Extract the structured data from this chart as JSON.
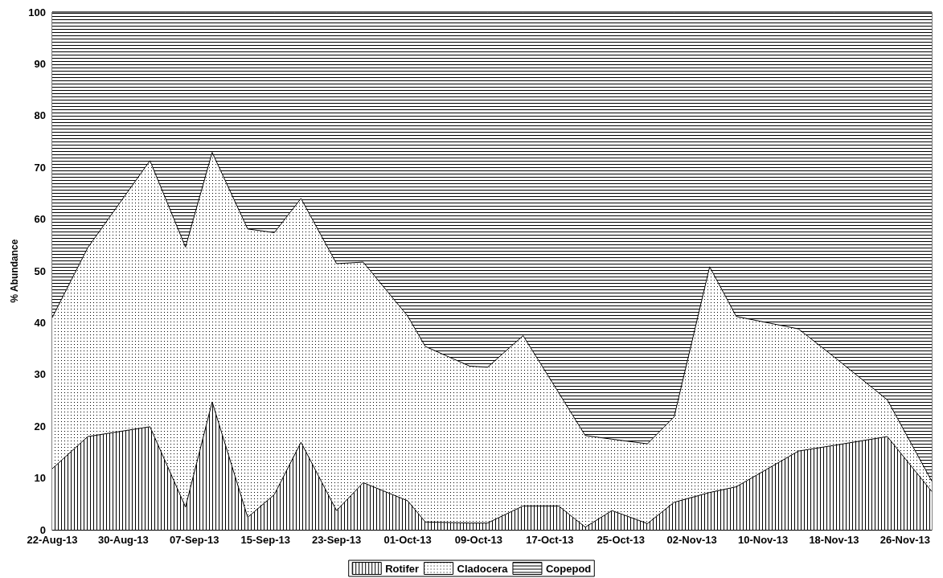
{
  "chart_data": {
    "type": "area",
    "stacked": true,
    "ylabel": "% Abundance",
    "legend": "bottom",
    "x": [
      "--08-22",
      "--08-26",
      "--09-02",
      "--09-06",
      "--09-09",
      "--09-13",
      "--09-16",
      "--09-19",
      "--09-23",
      "--09-26",
      "--10-01",
      "--10-03",
      "--10-08",
      "--10-10",
      "--10-14",
      "--10-18",
      "--10-21",
      "--10-24",
      "--10-28",
      "--10-31",
      "--11-04",
      "--11-07",
      "--11-14",
      "--11-18",
      "--11-24",
      "--11-29"
    ],
    "series": [
      {
        "name": "Rotifer",
        "color": "#000000",
        "values": [
          11.8,
          18.0,
          19.9,
          4.4,
          24.7,
          2.4,
          6.8,
          16.9,
          3.7,
          9.1,
          5.6,
          1.5,
          1.3,
          1.3,
          4.6,
          4.6,
          0.5,
          3.7,
          1.2,
          5.3,
          7.2,
          8.3,
          15.2,
          16.3,
          18.0,
          7.4
        ]
      },
      {
        "name": "Cladocera",
        "color": "#000000",
        "values": [
          29.2,
          36.5,
          51.4,
          50.2,
          48.2,
          55.7,
          50.6,
          47.1,
          47.7,
          42.6,
          35.7,
          33.9,
          30.3,
          30.1,
          32.9,
          21.9,
          17.7,
          13.8,
          15.4,
          16.5,
          43.6,
          32.9,
          23.6,
          17.1,
          7.1,
          2.0
        ]
      },
      {
        "name": "Copepod",
        "color": "#000000",
        "values": [
          59.0,
          45.5,
          28.7,
          45.4,
          27.1,
          41.9,
          42.6,
          36.0,
          48.6,
          48.3,
          58.7,
          64.6,
          68.4,
          68.6,
          62.5,
          73.5,
          81.8,
          82.5,
          83.4,
          78.2,
          49.2,
          58.8,
          61.2,
          66.6,
          74.9,
          90.6
        ]
      }
    ],
    "xlim": [
      "--08-22",
      "--11-29"
    ],
    "xticks": [
      {
        "value": "--08-22",
        "label": "22-Aug-13"
      },
      {
        "value": "--08-30",
        "label": "30-Aug-13"
      },
      {
        "value": "--09-07",
        "label": "07-Sep-13"
      },
      {
        "value": "--09-15",
        "label": "15-Sep-13"
      },
      {
        "value": "--09-23",
        "label": "23-Sep-13"
      },
      {
        "value": "--10-01",
        "label": "01-Oct-13"
      },
      {
        "value": "--10-09",
        "label": "09-Oct-13"
      },
      {
        "value": "--10-17",
        "label": "17-Oct-13"
      },
      {
        "value": "--10-25",
        "label": "25-Oct-13"
      },
      {
        "value": "--11-02",
        "label": "02-Nov-13"
      },
      {
        "value": "--11-10",
        "label": "10-Nov-13"
      },
      {
        "value": "--11-18",
        "label": "18-Nov-13"
      },
      {
        "value": "--11-26",
        "label": "26-Nov-13"
      }
    ],
    "ylim": [
      0,
      100
    ],
    "yticks": [
      0,
      10,
      20,
      30,
      40,
      50,
      60,
      70,
      80,
      90,
      100
    ]
  }
}
